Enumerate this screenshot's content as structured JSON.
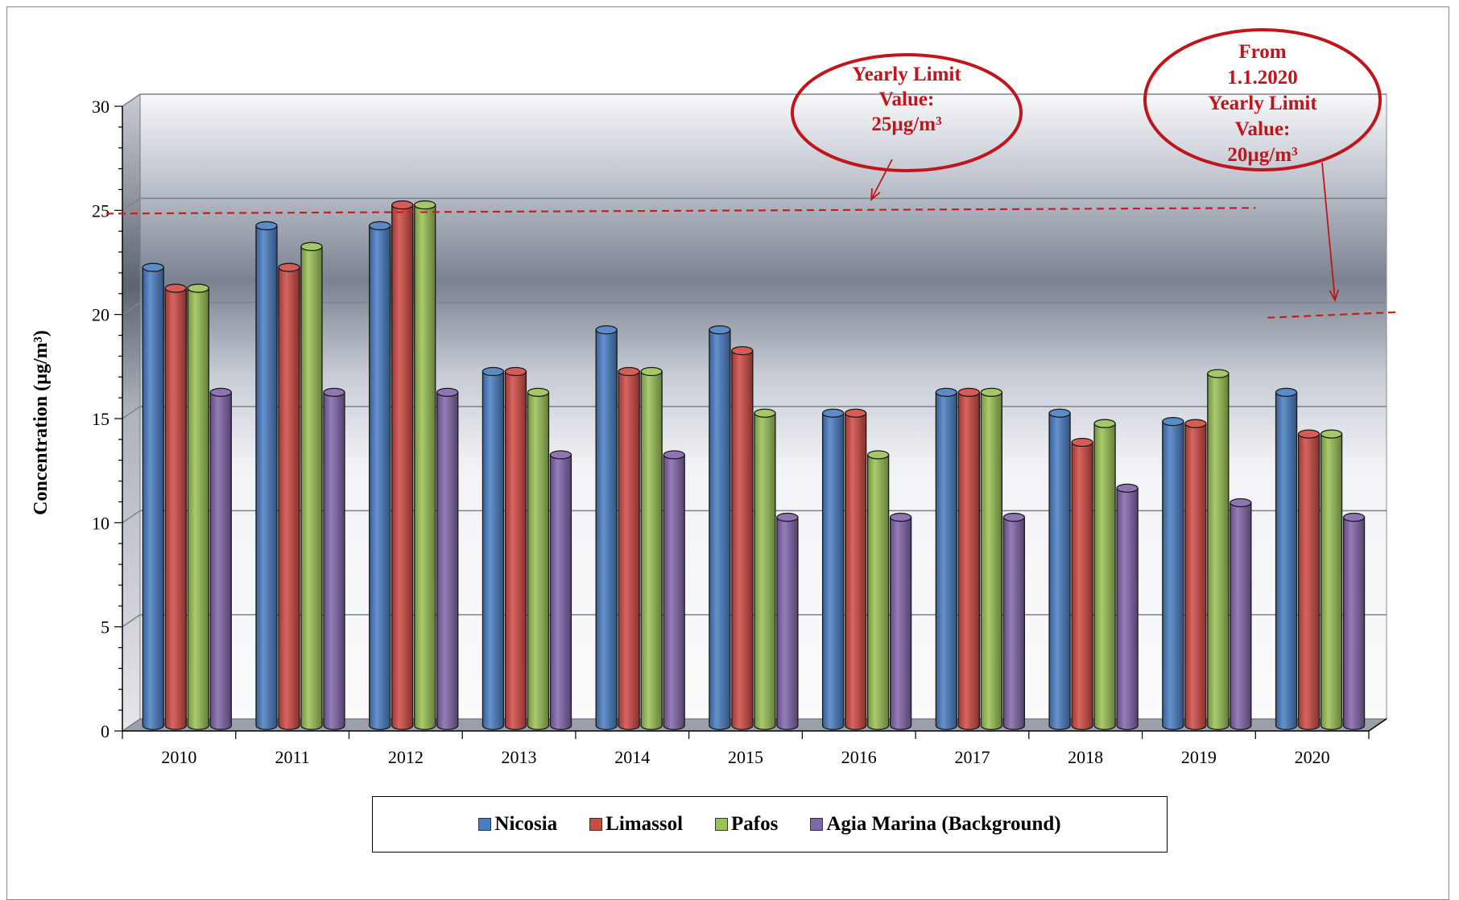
{
  "chart_data": {
    "type": "bar",
    "ylabel": "Concentration  (µg/m³)",
    "ylim": [
      0,
      30
    ],
    "yticks": [
      0,
      5,
      10,
      15,
      20,
      25,
      30
    ],
    "categories": [
      "2010",
      "2011",
      "2012",
      "2013",
      "2014",
      "2015",
      "2016",
      "2017",
      "2018",
      "2019",
      "2020"
    ],
    "series": [
      {
        "name": "Nicosia",
        "color": "#4a7ec4",
        "values": [
          22,
          24,
          24,
          17,
          19,
          19,
          15,
          16,
          15,
          14.6,
          16
        ]
      },
      {
        "name": "Limassol",
        "color": "#d04a44",
        "values": [
          21,
          22,
          25,
          17,
          17,
          18,
          15,
          16,
          13.6,
          14.5,
          14
        ]
      },
      {
        "name": "Pafos",
        "color": "#9bc256",
        "values": [
          21,
          23,
          25,
          16,
          17,
          15,
          13,
          16,
          14.5,
          16.9,
          14
        ]
      },
      {
        "name": "Agia Marina (Background)",
        "color": "#8266ab",
        "values": [
          16,
          16,
          16,
          13,
          13,
          10,
          10,
          10,
          11.4,
          10.7,
          10
        ]
      }
    ],
    "limit_lines": [
      {
        "value": 25,
        "from_category": "2010",
        "to_category": "2020"
      },
      {
        "value": 20,
        "from_category": "2020",
        "to_category": "2020"
      }
    ],
    "annotations": [
      {
        "text": [
          "Yearly Limit",
          "Value:",
          "25µg/m³"
        ]
      },
      {
        "text": [
          "From",
          "1.1.2020",
          "Yearly Limit",
          "Value:",
          "20µg/m³"
        ]
      }
    ],
    "legend_position": "bottom",
    "grid": true
  }
}
